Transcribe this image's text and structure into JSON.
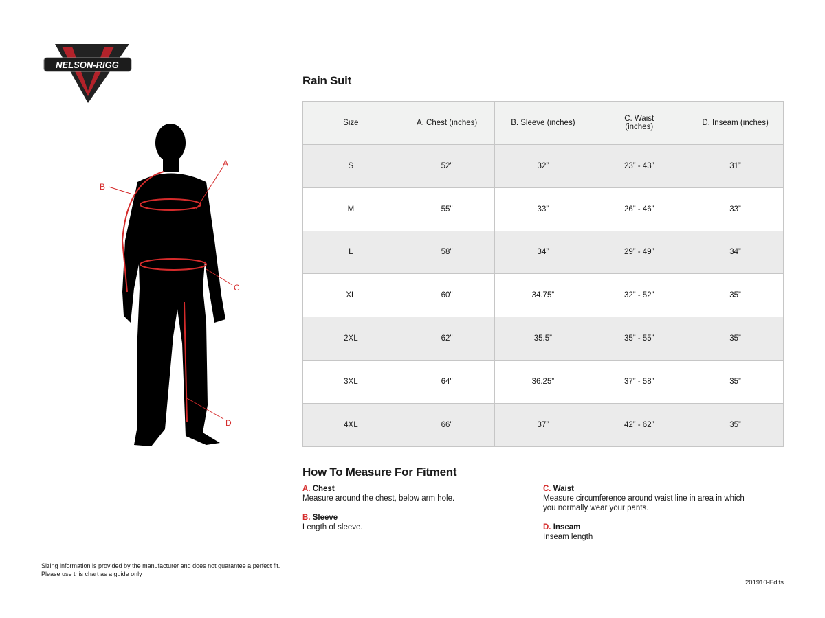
{
  "logo": {
    "text": "NELSON-RIGG"
  },
  "title": "Rain Suit",
  "table": {
    "headers": [
      "Size",
      "A. Chest (inches)",
      "B. Sleeve (inches)",
      "C. Waist (inches)",
      "D. Inseam (inches)"
    ],
    "rows": [
      [
        "S",
        "52\"",
        "32”",
        "23” - 43”",
        "31”"
      ],
      [
        "M",
        "55\"",
        "33”",
        "26” - 46”",
        "33”"
      ],
      [
        "L",
        "58\"",
        "34”",
        "29” - 49”",
        "34”"
      ],
      [
        "XL",
        "60\"",
        "34.75”",
        "32” - 52”",
        "35”"
      ],
      [
        "2XL",
        "62\"",
        "35.5”",
        "35” - 55”",
        "35”"
      ],
      [
        "3XL",
        "64\"",
        "36.25”",
        "37” - 58”",
        "35”"
      ],
      [
        "4XL",
        "66\"",
        "37”",
        "42” - 62”",
        "35”"
      ]
    ]
  },
  "figure": {
    "labels": [
      "A",
      "B",
      "C",
      "D"
    ],
    "accent": "#d52b2b"
  },
  "howto": {
    "title": "How To Measure For Fitment",
    "items": [
      {
        "key": "A.",
        "name": "Chest",
        "desc": "Measure around the chest, below arm hole."
      },
      {
        "key": "B.",
        "name": "Sleeve",
        "desc": "Length of sleeve."
      },
      {
        "key": "C.",
        "name": "Waist",
        "desc": "Measure circumference around waist line in area in which you normally wear your pants."
      },
      {
        "key": "D.",
        "name": "Inseam",
        "desc": "Inseam length"
      }
    ]
  },
  "disclaimer": [
    "Sizing information is provided by the manufacturer and does not guarantee a perfect fit.",
    "Please use this chart as a guide only"
  ],
  "code": "201910-Edits"
}
